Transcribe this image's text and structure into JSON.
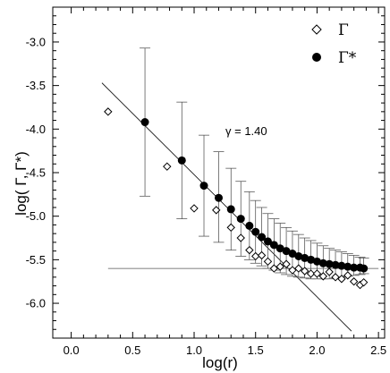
{
  "chart_data": {
    "type": "scatter",
    "xlabel": "log(r)",
    "ylabel": "log( Γ, Γ*)",
    "xlim": [
      -0.15,
      2.55
    ],
    "ylim": [
      -6.4,
      -2.6
    ],
    "xticks": [
      0.0,
      0.5,
      1.0,
      1.5,
      2.0,
      2.5
    ],
    "yticks": [
      -6.0,
      -5.5,
      -5.0,
      -4.5,
      -4.0,
      -3.5,
      -3.0
    ],
    "xtick_labels": [
      "0.0",
      "0.5",
      "1.0",
      "1.5",
      "2.0",
      "2.5"
    ],
    "ytick_labels": [
      "-6.0",
      "-5.5",
      "-5.0",
      "-4.5",
      "-4.0",
      "-3.5",
      "-3.0"
    ],
    "grid": false,
    "legend_position": "top-right",
    "series": [
      {
        "name": "Γ",
        "marker": "open-diamond",
        "x": [
          0.3,
          0.78,
          1.0,
          1.18,
          1.3,
          1.38,
          1.45,
          1.5,
          1.55,
          1.6,
          1.65,
          1.7,
          1.75,
          1.8,
          1.85,
          1.9,
          1.95,
          2.0,
          2.05,
          2.1,
          2.15,
          2.2,
          2.25,
          2.3,
          2.35,
          2.38
        ],
        "y": [
          -3.8,
          -4.43,
          -4.91,
          -4.93,
          -5.13,
          -5.25,
          -5.39,
          -5.46,
          -5.45,
          -5.52,
          -5.6,
          -5.58,
          -5.55,
          -5.62,
          -5.6,
          -5.63,
          -5.66,
          -5.66,
          -5.69,
          -5.64,
          -5.7,
          -5.72,
          -5.68,
          -5.75,
          -5.79,
          -5.76
        ]
      },
      {
        "name": "Γ*",
        "marker": "filled-circle",
        "x": [
          0.6,
          0.9,
          1.08,
          1.2,
          1.3,
          1.38,
          1.45,
          1.5,
          1.55,
          1.6,
          1.65,
          1.7,
          1.75,
          1.8,
          1.85,
          1.9,
          1.95,
          2.0,
          2.05,
          2.1,
          2.15,
          2.2,
          2.25,
          2.3,
          2.35,
          2.38
        ],
        "y": [
          -3.92,
          -4.36,
          -4.65,
          -4.79,
          -4.92,
          -5.03,
          -5.11,
          -5.18,
          -5.24,
          -5.29,
          -5.33,
          -5.37,
          -5.4,
          -5.43,
          -5.46,
          -5.48,
          -5.5,
          -5.52,
          -5.54,
          -5.55,
          -5.56,
          -5.57,
          -5.58,
          -5.59,
          -5.59,
          -5.6
        ],
        "error_upper": [
          -3.07,
          -3.69,
          -4.07,
          -4.26,
          -4.45,
          -4.6,
          -4.72,
          -4.82,
          -4.9,
          -4.97,
          -5.03,
          -5.08,
          -5.13,
          -5.17,
          -5.21,
          -5.25,
          -5.28,
          -5.31,
          -5.34,
          -5.37,
          -5.39,
          -5.41,
          -5.43,
          -5.45,
          -5.47,
          -5.48
        ],
        "error_lower": [
          -4.77,
          -5.03,
          -5.23,
          -5.3,
          -5.39,
          -5.46,
          -5.5,
          -5.54,
          -5.57,
          -5.6,
          -5.62,
          -5.65,
          -5.67,
          -5.69,
          -5.7,
          -5.71,
          -5.72,
          -5.72,
          -5.72,
          -5.72,
          -5.71,
          -5.7,
          -5.69,
          -5.68,
          -5.67,
          -5.66
        ]
      }
    ],
    "fit_line": {
      "x": [
        0.25,
        2.28
      ],
      "y": [
        -3.47,
        -6.32
      ]
    },
    "horizontal_line": {
      "x": [
        0.3,
        2.5
      ],
      "y": -5.6
    },
    "annotation": "γ = 1.40"
  }
}
